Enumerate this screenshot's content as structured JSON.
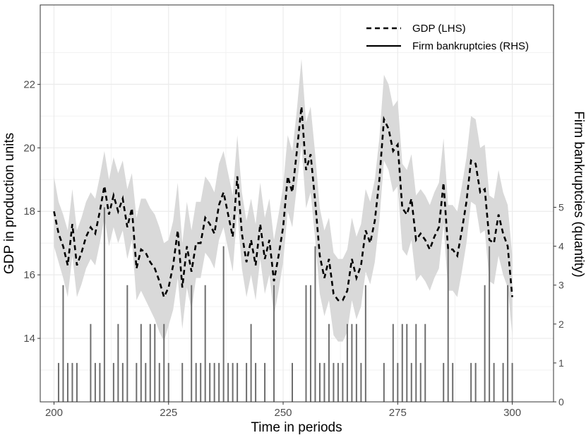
{
  "chart_data": {
    "type": "line",
    "xlabel": "Time in periods",
    "ylabel": "GDP in production units",
    "y2label": "Firm bankruptcies (quantity)",
    "xlim": [
      197,
      309
    ],
    "ylim": [
      12,
      24.5
    ],
    "y2lim": [
      0,
      10.2
    ],
    "xticks": [
      200,
      225,
      250,
      275,
      300
    ],
    "yticks": [
      14,
      16,
      18,
      20,
      22
    ],
    "y2ticks": [
      0,
      1,
      2,
      3,
      4,
      5
    ],
    "grid": true,
    "legend_position": "top-right",
    "series": [
      {
        "name": "GDP (LHS)",
        "style": "dashed",
        "color": "#000000",
        "x": [
          200,
          201,
          202,
          203,
          204,
          205,
          206,
          207,
          208,
          209,
          210,
          211,
          212,
          213,
          214,
          215,
          216,
          217,
          218,
          219,
          220,
          221,
          222,
          223,
          224,
          225,
          226,
          227,
          228,
          229,
          230,
          231,
          232,
          233,
          234,
          235,
          236,
          237,
          238,
          239,
          240,
          241,
          242,
          243,
          244,
          245,
          246,
          247,
          248,
          249,
          250,
          251,
          252,
          253,
          254,
          255,
          256,
          257,
          258,
          259,
          260,
          261,
          262,
          263,
          264,
          265,
          266,
          267,
          268,
          269,
          270,
          271,
          272,
          273,
          274,
          275,
          276,
          277,
          278,
          279,
          280,
          281,
          282,
          283,
          284,
          285,
          286,
          287,
          288,
          289,
          290,
          291,
          292,
          293,
          294,
          295,
          296,
          297,
          298,
          299,
          300
        ],
        "values": [
          18.0,
          17.3,
          16.9,
          16.3,
          17.6,
          16.3,
          16.7,
          17.2,
          17.5,
          17.3,
          18.0,
          18.8,
          17.9,
          18.5,
          18.0,
          18.4,
          17.5,
          18.1,
          16.2,
          16.8,
          16.7,
          16.4,
          16.2,
          15.8,
          15.3,
          15.6,
          16.3,
          17.4,
          15.6,
          16.9,
          16.1,
          17.0,
          17.0,
          17.8,
          17.6,
          17.3,
          18.2,
          18.6,
          17.9,
          17.2,
          19.1,
          17.3,
          16.4,
          17.1,
          16.3,
          17.6,
          16.5,
          17.1,
          15.8,
          16.6,
          17.5,
          19.1,
          18.6,
          19.9,
          21.3,
          19.3,
          19.8,
          18.3,
          16.6,
          15.9,
          16.5,
          15.4,
          15.2,
          15.2,
          15.5,
          16.5,
          15.9,
          16.3,
          17.4,
          17.0,
          17.7,
          19.0,
          20.9,
          20.6,
          19.9,
          20.1,
          18.1,
          17.9,
          18.4,
          17.1,
          17.3,
          17.1,
          16.8,
          17.2,
          17.5,
          18.9,
          16.8,
          16.8,
          16.6,
          17.4,
          18.3,
          19.6,
          19.5,
          18.6,
          18.7,
          17.1,
          17.0,
          17.9,
          17.3,
          16.9,
          15.3
        ],
        "band_lower": [
          16.9,
          16.4,
          15.9,
          15.3,
          16.6,
          15.3,
          15.7,
          16.2,
          16.5,
          16.3,
          17.0,
          17.8,
          16.9,
          17.5,
          17.0,
          17.4,
          16.5,
          17.1,
          15.2,
          15.5,
          15.2,
          14.9,
          14.6,
          14.2,
          13.9,
          14.4,
          14.9,
          15.9,
          14.3,
          15.6,
          14.9,
          15.9,
          15.9,
          16.7,
          16.5,
          16.2,
          17.1,
          17.5,
          16.8,
          16.1,
          18.0,
          16.2,
          15.3,
          16.0,
          15.2,
          16.5,
          15.4,
          16.0,
          14.7,
          15.5,
          16.4,
          18.0,
          17.5,
          18.8,
          20.1,
          18.1,
          18.6,
          17.1,
          15.4,
          14.7,
          15.2,
          14.1,
          13.9,
          13.9,
          14.2,
          15.2,
          14.6,
          15.0,
          16.1,
          15.7,
          16.4,
          17.7,
          19.6,
          19.3,
          18.6,
          18.8,
          16.8,
          16.6,
          17.1,
          15.8,
          16.0,
          15.8,
          15.5,
          15.9,
          16.2,
          17.6,
          15.5,
          15.5,
          15.3,
          16.1,
          17.0,
          18.3,
          18.2,
          17.3,
          17.4,
          15.8,
          15.7,
          16.6,
          16.0,
          15.6,
          14.1
        ],
        "band_upper": [
          19.1,
          18.3,
          17.9,
          17.4,
          18.7,
          17.4,
          17.8,
          18.3,
          18.6,
          18.4,
          19.1,
          19.9,
          19.0,
          19.7,
          19.2,
          19.6,
          18.7,
          19.2,
          17.8,
          18.4,
          18.4,
          18.1,
          17.9,
          17.5,
          17.0,
          17.1,
          17.7,
          18.9,
          17.0,
          18.3,
          17.4,
          18.3,
          18.3,
          19.1,
          18.9,
          18.6,
          19.5,
          19.9,
          19.2,
          18.5,
          20.4,
          18.6,
          17.7,
          18.4,
          17.6,
          18.9,
          17.8,
          18.4,
          17.1,
          17.9,
          18.8,
          20.4,
          19.9,
          21.2,
          22.8,
          20.8,
          21.3,
          19.8,
          18.1,
          17.4,
          17.8,
          16.7,
          16.5,
          16.5,
          16.8,
          17.8,
          17.2,
          17.6,
          18.7,
          18.3,
          19.0,
          20.3,
          22.3,
          22.0,
          21.3,
          21.5,
          19.5,
          19.3,
          19.8,
          18.5,
          18.7,
          18.5,
          18.2,
          18.6,
          18.9,
          20.3,
          18.2,
          18.2,
          18.0,
          18.8,
          19.7,
          21.0,
          20.9,
          20.0,
          20.1,
          18.5,
          18.4,
          19.3,
          18.6,
          18.2,
          16.6
        ]
      },
      {
        "name": "Firm bankruptcies (RHS)",
        "style": "solid",
        "color": "#6e6e6e",
        "x": [
          200,
          201,
          202,
          203,
          204,
          205,
          206,
          207,
          208,
          209,
          210,
          211,
          212,
          213,
          214,
          215,
          216,
          217,
          218,
          219,
          220,
          221,
          222,
          223,
          224,
          225,
          226,
          227,
          228,
          229,
          230,
          231,
          232,
          233,
          234,
          235,
          236,
          237,
          238,
          239,
          240,
          241,
          242,
          243,
          244,
          245,
          246,
          247,
          248,
          249,
          250,
          251,
          252,
          253,
          254,
          255,
          256,
          257,
          258,
          259,
          260,
          261,
          262,
          263,
          264,
          265,
          266,
          267,
          268,
          269,
          270,
          271,
          272,
          273,
          274,
          275,
          276,
          277,
          278,
          279,
          280,
          281,
          282,
          283,
          284,
          285,
          286,
          287,
          288,
          289,
          290,
          291,
          292,
          293,
          294,
          295,
          296,
          297,
          298,
          299,
          300
        ],
        "values": [
          0,
          1,
          3,
          1,
          1,
          1,
          0,
          0,
          2,
          1,
          1,
          5,
          0,
          1,
          2,
          1,
          3,
          0,
          1,
          2,
          1,
          2,
          2,
          1,
          2,
          1,
          0,
          0,
          1,
          0,
          3,
          1,
          1,
          3,
          1,
          1,
          1,
          4,
          1,
          1,
          1,
          0,
          1,
          2,
          1,
          0,
          1,
          0,
          3,
          0,
          0,
          0,
          1,
          0,
          0,
          3,
          3,
          4,
          1,
          1,
          2,
          1,
          1,
          1,
          2,
          2,
          2,
          1,
          3,
          0,
          0,
          0,
          1,
          0,
          2,
          1,
          2,
          2,
          1,
          2,
          1,
          2,
          0,
          0,
          0,
          1,
          4,
          1,
          0,
          0,
          0,
          1,
          1,
          0,
          3,
          4,
          1,
          0,
          1,
          3,
          1
        ]
      }
    ]
  }
}
